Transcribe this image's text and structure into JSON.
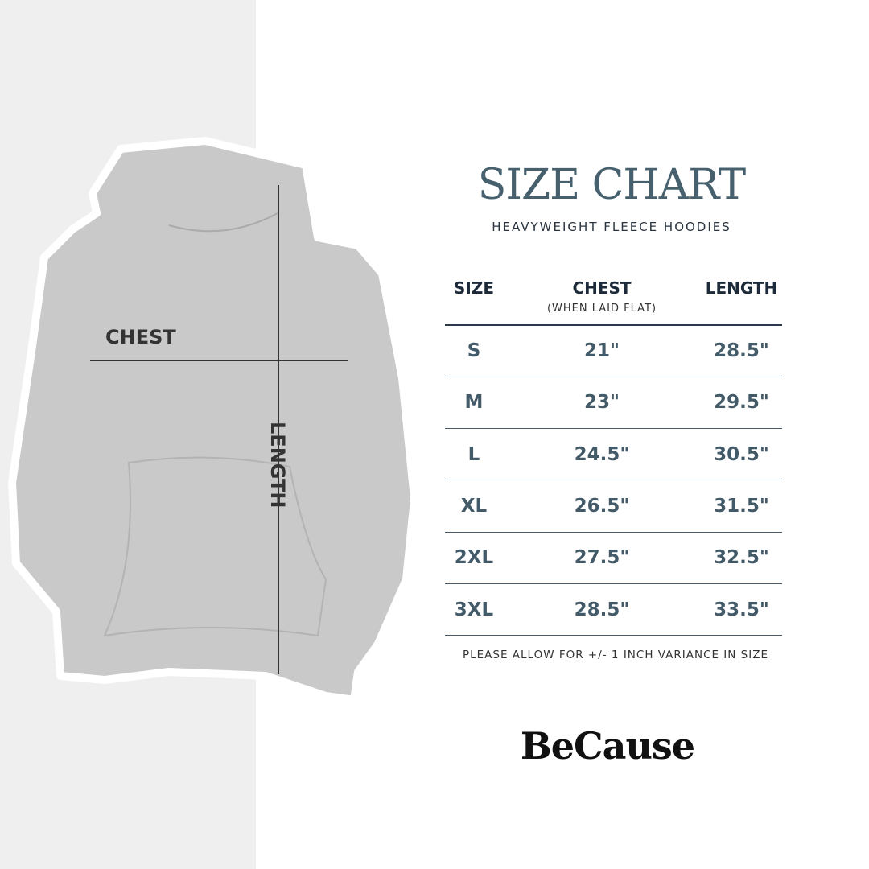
{
  "illustration": {
    "chest_label": "CHEST",
    "length_label": "LENGTH"
  },
  "header": {
    "title": "SIZE CHART",
    "subtitle": "HEAVYWEIGHT FLEECE HOODIES"
  },
  "table": {
    "columns": [
      {
        "label": "SIZE"
      },
      {
        "label": "CHEST",
        "note": "(WHEN LAID FLAT)"
      },
      {
        "label": "LENGTH"
      }
    ],
    "rows": [
      {
        "size": "S",
        "chest": "21\"",
        "length": "28.5\""
      },
      {
        "size": "M",
        "chest": "23\"",
        "length": "29.5\""
      },
      {
        "size": "L",
        "chest": "24.5\"",
        "length": "30.5\""
      },
      {
        "size": "XL",
        "chest": "26.5\"",
        "length": "31.5\""
      },
      {
        "size": "2XL",
        "chest": "27.5\"",
        "length": "32.5\""
      },
      {
        "size": "3XL",
        "chest": "28.5\"",
        "length": "33.5\""
      }
    ]
  },
  "footnote": "PLEASE ALLOW FOR +/- 1 INCH VARIANCE IN SIZE",
  "brand": "BeCause",
  "colors": {
    "title": "#46606e",
    "header": "#1c2a3a",
    "values": "#435a68",
    "panel": "#efefef",
    "hoodie": "#c8c8c8"
  }
}
